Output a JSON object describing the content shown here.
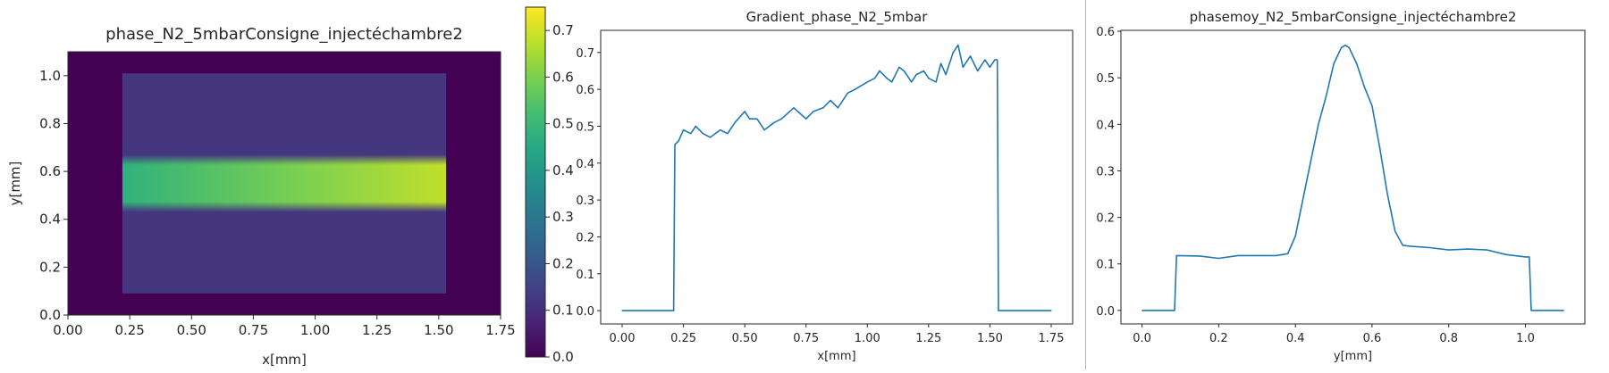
{
  "chart_data": [
    {
      "type": "heatmap",
      "title": "phase_N2_5mbarConsigne_injectéchambre2",
      "xlabel": "x[mm]",
      "ylabel": "y[mm]",
      "xlim": [
        0.0,
        1.75
      ],
      "ylim": [
        0.0,
        1.1
      ],
      "x_ticks": [
        "0.00",
        "0.25",
        "0.50",
        "0.75",
        "1.00",
        "1.25",
        "1.50",
        "1.75"
      ],
      "y_ticks": [
        "0.0",
        "0.2",
        "0.4",
        "0.6",
        "0.8",
        "1.0"
      ],
      "colorbar": {
        "colormap": "viridis",
        "range": [
          0.0,
          0.75
        ],
        "ticks": [
          "0.0",
          "0.1",
          "0.2",
          "0.3",
          "0.4",
          "0.5",
          "0.6",
          "0.7"
        ]
      },
      "regions": [
        {
          "x": [
            0.0,
            1.75
          ],
          "y": [
            0.0,
            1.1
          ],
          "value": 0.0
        },
        {
          "x": [
            0.22,
            1.53
          ],
          "y": [
            0.09,
            1.01
          ],
          "value": 0.12
        },
        {
          "x": [
            0.22,
            1.53
          ],
          "y": [
            0.43,
            0.67
          ],
          "value_start": 0.48,
          "value_end": 0.68,
          "center_y": 0.565
        }
      ]
    },
    {
      "type": "line",
      "title": "Gradient_phase_N2_5mbar",
      "xlabel": "x[mm]",
      "ylabel": "",
      "xlim": [
        -0.0875,
        1.8375
      ],
      "ylim": [
        -0.036,
        0.76
      ],
      "x_ticks": [
        "0.00",
        "0.25",
        "0.50",
        "0.75",
        "1.00",
        "1.25",
        "1.50",
        "1.75"
      ],
      "y_ticks": [
        "0.0",
        "0.1",
        "0.2",
        "0.3",
        "0.4",
        "0.5",
        "0.6",
        "0.7"
      ],
      "line_color": "#1f77b4",
      "x": [
        0.0,
        0.21,
        0.215,
        0.23,
        0.25,
        0.28,
        0.3,
        0.33,
        0.36,
        0.4,
        0.43,
        0.46,
        0.5,
        0.52,
        0.55,
        0.58,
        0.62,
        0.65,
        0.7,
        0.75,
        0.78,
        0.82,
        0.85,
        0.88,
        0.92,
        0.95,
        1.0,
        1.03,
        1.05,
        1.08,
        1.1,
        1.13,
        1.15,
        1.18,
        1.2,
        1.23,
        1.25,
        1.28,
        1.3,
        1.32,
        1.35,
        1.37,
        1.39,
        1.42,
        1.45,
        1.48,
        1.5,
        1.52,
        1.53,
        1.535,
        1.75
      ],
      "y": [
        0.0,
        0.0,
        0.45,
        0.46,
        0.49,
        0.48,
        0.5,
        0.48,
        0.47,
        0.49,
        0.48,
        0.51,
        0.54,
        0.52,
        0.52,
        0.49,
        0.51,
        0.52,
        0.55,
        0.52,
        0.54,
        0.55,
        0.57,
        0.55,
        0.59,
        0.6,
        0.62,
        0.63,
        0.65,
        0.63,
        0.62,
        0.66,
        0.65,
        0.62,
        0.64,
        0.65,
        0.63,
        0.62,
        0.67,
        0.64,
        0.7,
        0.72,
        0.66,
        0.69,
        0.65,
        0.68,
        0.66,
        0.68,
        0.68,
        0.0,
        0.0
      ]
    },
    {
      "type": "line",
      "title": "phasemoy_N2_5mbarConsigne_injectéchambre2",
      "xlabel": "y[mm]",
      "ylabel": "",
      "xlim": [
        -0.055,
        1.155
      ],
      "ylim": [
        -0.029,
        0.602
      ],
      "x_ticks": [
        "0.0",
        "0.2",
        "0.4",
        "0.6",
        "0.8",
        "1.0"
      ],
      "y_ticks": [
        "0.0",
        "0.1",
        "0.2",
        "0.3",
        "0.4",
        "0.5",
        "0.6"
      ],
      "line_color": "#1f77b4",
      "x": [
        0.0,
        0.085,
        0.09,
        0.15,
        0.2,
        0.25,
        0.3,
        0.35,
        0.38,
        0.4,
        0.42,
        0.44,
        0.46,
        0.48,
        0.5,
        0.52,
        0.53,
        0.54,
        0.56,
        0.58,
        0.6,
        0.62,
        0.64,
        0.66,
        0.68,
        0.7,
        0.75,
        0.8,
        0.85,
        0.9,
        0.95,
        1.0,
        1.01,
        1.015,
        1.1
      ],
      "y": [
        0.0,
        0.0,
        0.118,
        0.117,
        0.112,
        0.118,
        0.118,
        0.118,
        0.122,
        0.16,
        0.24,
        0.32,
        0.4,
        0.46,
        0.53,
        0.565,
        0.57,
        0.565,
        0.53,
        0.48,
        0.44,
        0.35,
        0.25,
        0.17,
        0.14,
        0.138,
        0.135,
        0.13,
        0.132,
        0.13,
        0.12,
        0.115,
        0.115,
        0.0,
        0.0
      ]
    }
  ]
}
